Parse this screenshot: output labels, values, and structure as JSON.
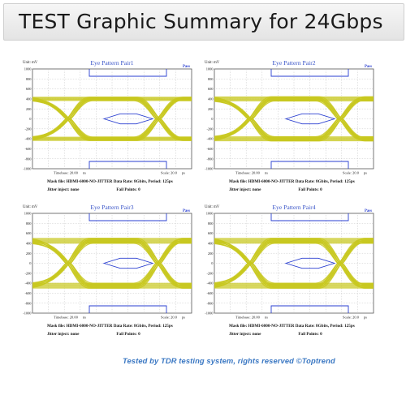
{
  "header": {
    "title": "TEST Graphic Summary for 24Gbps"
  },
  "footer": {
    "text": "Tested by TDR testing system, rights reserved ©Toptrend"
  },
  "colors": {
    "eye_trace": "#c8c81e",
    "mask": "#2a3fd0",
    "grid": "#b9b9b9",
    "accent_text": "#3b78c3"
  },
  "panels": [
    {
      "title": "Eye Pattern Pair1",
      "status": "Pass",
      "unit_label": "Unit: mV",
      "timebase_label": "Timebase: 20.00",
      "timebase_unit": "ns",
      "scale_label": "Scale: 20.0",
      "scale_unit": "ps",
      "mask_file": "Mask file: HDMI-6000-NO-JITTER",
      "data_rate": "Data Rate: 8Gbits, Period: 125ps",
      "jitter": "Jitter inject: none",
      "fail_points": "Fail Points: 0"
    },
    {
      "title": "Eye Pattern Pair2",
      "status": "Pass",
      "unit_label": "Unit: mV",
      "timebase_label": "Timebase: 20.00",
      "timebase_unit": "ns",
      "scale_label": "Scale: 20.0",
      "scale_unit": "ps",
      "mask_file": "Mask file: HDMI-6000-NO-JITTER",
      "data_rate": "Data Rate: 8Gbits, Period: 125ps",
      "jitter": "Jitter inject: none",
      "fail_points": "Fail Points: 0"
    },
    {
      "title": "Eye Pattern Pair3",
      "status": "Pass",
      "unit_label": "Unit: mV",
      "timebase_label": "Timebase: 20.00",
      "timebase_unit": "ns",
      "scale_label": "Scale: 20.0",
      "scale_unit": "ps",
      "mask_file": "Mask file: HDMI-6000-NO-JITTER",
      "data_rate": "Data Rate: 8Gbits, Period: 125ps",
      "jitter": "Jitter inject: none",
      "fail_points": "Fail Points: 0"
    },
    {
      "title": "Eye Pattern Pair4",
      "status": "Pass",
      "unit_label": "Unit: mV",
      "timebase_label": "Timebase: 20.00",
      "timebase_unit": "ns",
      "scale_label": "Scale: 20.0",
      "scale_unit": "ps",
      "mask_file": "Mask file: HDMI-6000-NO-JITTER",
      "data_rate": "Data Rate: 8Gbits, Period: 125ps",
      "jitter": "Jitter inject: none",
      "fail_points": "Fail Points: 0"
    }
  ],
  "chart_data": [
    {
      "type": "eye",
      "title": "Eye Pattern Pair1",
      "ylabel": "mV",
      "yticks": [
        1000,
        800,
        600,
        400,
        200,
        0,
        -200,
        -400,
        -600,
        -800,
        -1000
      ],
      "ylim": [
        -1000,
        1000
      ],
      "high_level": 400,
      "low_level": -400,
      "eye_thickness": 70,
      "mask_upper": 1000,
      "mask_lower": -1000,
      "mask_inner_half_height": 100,
      "grid": true
    },
    {
      "type": "eye",
      "title": "Eye Pattern Pair2",
      "ylabel": "mV",
      "yticks": [
        1000,
        800,
        600,
        400,
        200,
        0,
        -200,
        -400,
        -600,
        -800,
        -1000
      ],
      "ylim": [
        -1000,
        1000
      ],
      "high_level": 400,
      "low_level": -400,
      "eye_thickness": 85,
      "mask_upper": 1000,
      "mask_lower": -1000,
      "mask_inner_half_height": 100,
      "grid": true
    },
    {
      "type": "eye",
      "title": "Eye Pattern Pair3",
      "ylabel": "mV",
      "yticks": [
        1000,
        800,
        600,
        400,
        200,
        0,
        -200,
        -400,
        -600,
        -800,
        -1000
      ],
      "ylim": [
        -1000,
        1000
      ],
      "high_level": 450,
      "low_level": -450,
      "eye_thickness": 100,
      "mask_upper": 1000,
      "mask_lower": -1000,
      "mask_inner_half_height": 100,
      "grid": true
    },
    {
      "type": "eye",
      "title": "Eye Pattern Pair4",
      "ylabel": "mV",
      "yticks": [
        1000,
        800,
        600,
        400,
        200,
        0,
        -200,
        -400,
        -600,
        -800,
        -1000
      ],
      "ylim": [
        -1000,
        1000
      ],
      "high_level": 450,
      "low_level": -450,
      "eye_thickness": 100,
      "mask_upper": 1000,
      "mask_lower": -1000,
      "mask_inner_half_height": 100,
      "grid": true
    }
  ]
}
